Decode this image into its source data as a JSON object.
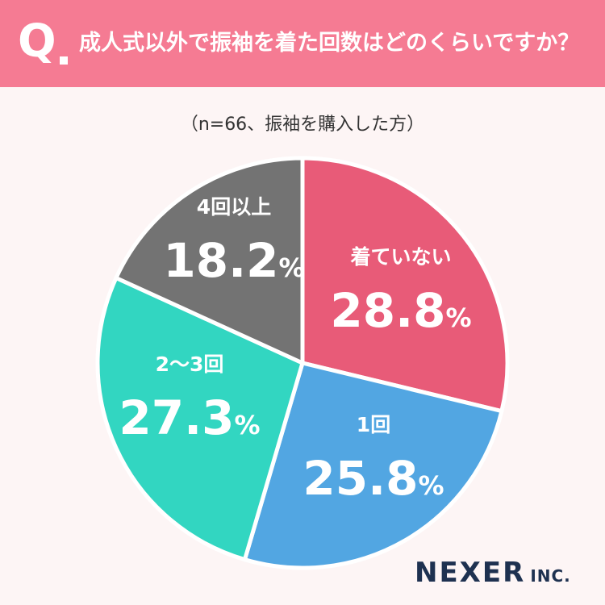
{
  "header": {
    "q_mark": "Q",
    "question": "成人式以外で振袖を着た回数はどのくらいですか？"
  },
  "note": "（n=66、振袖を購入した方）",
  "chart_data": {
    "type": "pie",
    "start": "12 o'clock, clockwise",
    "labels": [
      "着ていない",
      "1回",
      "2〜3回",
      "4回以上"
    ],
    "values": [
      28.8,
      25.8,
      27.3,
      18.2
    ],
    "value_suffix": "%",
    "colors": [
      "#e85b78",
      "#52a6e2",
      "#32d6c1",
      "#737373"
    ]
  },
  "logo": {
    "name": "NEXER",
    "suffix": "INC."
  }
}
